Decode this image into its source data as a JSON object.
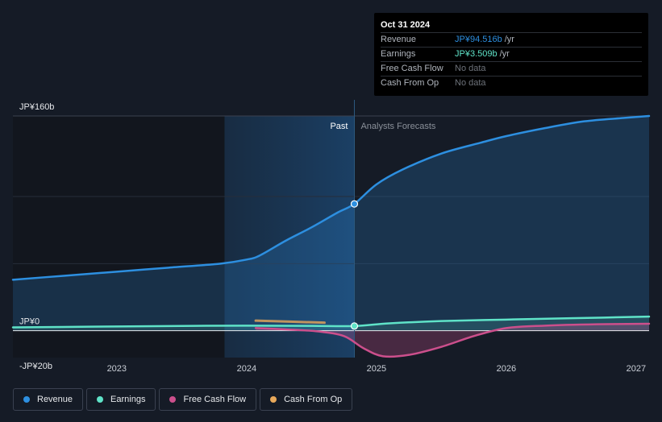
{
  "chart_data": {
    "type": "area",
    "y_axis": {
      "ylim": [
        -20,
        160
      ],
      "labels": [
        {
          "value": 160,
          "text": "JP¥160b"
        },
        {
          "value": 0,
          "text": "JP¥0"
        },
        {
          "value": -20,
          "text": "-JP¥20b"
        }
      ]
    },
    "x_axis": {
      "xlim": [
        2022.2,
        2027.1
      ],
      "ticks": [
        {
          "value": 2023,
          "text": "2023"
        },
        {
          "value": 2024,
          "text": "2024"
        },
        {
          "value": 2025,
          "text": "2025"
        },
        {
          "value": 2026,
          "text": "2026"
        },
        {
          "value": 2027,
          "text": "2027"
        }
      ]
    },
    "divider": {
      "x": 2024.83,
      "past_label": "Past",
      "forecast_label": "Analysts Forecasts"
    },
    "past_shade_start": 2023.83,
    "series": [
      {
        "name": "Revenue",
        "color": "#2d8fe0",
        "points": [
          [
            2022.2,
            38
          ],
          [
            2022.6,
            41
          ],
          [
            2023.0,
            44
          ],
          [
            2023.4,
            47
          ],
          [
            2023.8,
            50
          ],
          [
            2024.0,
            53
          ],
          [
            2024.1,
            56
          ],
          [
            2024.3,
            67
          ],
          [
            2024.5,
            77
          ],
          [
            2024.7,
            88
          ],
          [
            2024.83,
            94.5
          ],
          [
            2025.0,
            109
          ],
          [
            2025.2,
            120
          ],
          [
            2025.5,
            132
          ],
          [
            2025.8,
            140
          ],
          [
            2026.0,
            145
          ],
          [
            2026.3,
            151
          ],
          [
            2026.6,
            156
          ],
          [
            2026.9,
            158.5
          ],
          [
            2027.1,
            160
          ]
        ]
      },
      {
        "name": "Earnings",
        "color": "#5fe3c8",
        "points": [
          [
            2022.2,
            2.5
          ],
          [
            2022.8,
            3.0
          ],
          [
            2023.4,
            3.5
          ],
          [
            2024.0,
            3.8
          ],
          [
            2024.5,
            3.6
          ],
          [
            2024.83,
            3.5
          ],
          [
            2025.1,
            5.5
          ],
          [
            2025.5,
            7.2
          ],
          [
            2026.0,
            8.3
          ],
          [
            2026.5,
            9.3
          ],
          [
            2027.1,
            10.5
          ]
        ]
      },
      {
        "name": "Free Cash Flow",
        "color": "#cc4f8c",
        "points": [
          [
            2024.07,
            2.0
          ],
          [
            2024.3,
            1.0
          ],
          [
            2024.55,
            -0.5
          ],
          [
            2024.75,
            -4
          ],
          [
            2024.9,
            -13
          ],
          [
            2025.05,
            -19
          ],
          [
            2025.25,
            -18
          ],
          [
            2025.5,
            -12
          ],
          [
            2025.75,
            -4
          ],
          [
            2026.0,
            2.0
          ],
          [
            2026.3,
            3.8
          ],
          [
            2026.7,
            4.8
          ],
          [
            2027.1,
            5.2
          ]
        ]
      },
      {
        "name": "Cash From Op",
        "color": "#e8a85a",
        "points": [
          [
            2024.07,
            7.5
          ],
          [
            2024.6,
            6.0
          ]
        ]
      }
    ],
    "highlight_points": [
      {
        "series": "Revenue",
        "x": 2024.83,
        "y": 94.5
      },
      {
        "series": "Earnings",
        "x": 2024.83,
        "y": 3.5
      }
    ]
  },
  "tooltip": {
    "date": "Oct 31 2024",
    "rows": [
      {
        "label": "Revenue",
        "value": "JP¥94.516b",
        "unit": "/yr",
        "color": "#2d8fe0"
      },
      {
        "label": "Earnings",
        "value": "JP¥3.509b",
        "unit": "/yr",
        "color": "#5fe3c8"
      },
      {
        "label": "Free Cash Flow",
        "value": "No data",
        "unit": "",
        "color": "#6d727a"
      },
      {
        "label": "Cash From Op",
        "value": "No data",
        "unit": "",
        "color": "#6d727a"
      }
    ]
  },
  "legend": [
    {
      "label": "Revenue",
      "color": "#2d8fe0"
    },
    {
      "label": "Earnings",
      "color": "#5fe3c8"
    },
    {
      "label": "Free Cash Flow",
      "color": "#cc4f8c"
    },
    {
      "label": "Cash From Op",
      "color": "#e8a85a"
    }
  ]
}
